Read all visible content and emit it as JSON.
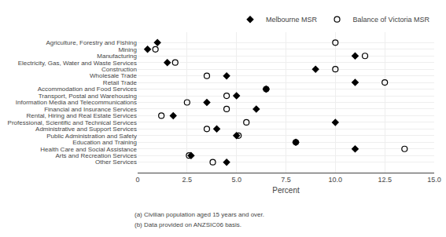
{
  "chart_data": {
    "type": "scatter",
    "orientation": "horizontal",
    "categories": [
      "Agriculture, Forestry and Fishing",
      "Mining",
      "Manufacturing",
      "Electricity, Gas, Water and Waste Services",
      "Construction",
      "Wholesale Trade",
      "Retail Trade",
      "Accommodation and Food Services",
      "Transport, Postal and Warehousing",
      "Information Media and Telecommunications",
      "Financial and Insurance Services",
      "Rental, Hiring and Real Estate Services",
      "Professional, Scientific and Technical Services",
      "Administrative and Support Services",
      "Public Administration and Safety",
      "Education and Training",
      "Health Care and Social Assistance",
      "Arts and Recreation Services",
      "Other Services"
    ],
    "series": [
      {
        "name": "Melbourne MSR",
        "color": "black",
        "marker": "diamond",
        "values": [
          1.0,
          0.5,
          11.0,
          1.5,
          9.0,
          4.5,
          11.0,
          6.5,
          5.0,
          3.5,
          6.0,
          1.8,
          10.0,
          4.0,
          5.0,
          8.0,
          11.0,
          2.7,
          4.5
        ]
      },
      {
        "name": "Balance of Victoria MSR",
        "color": "black",
        "marker": "circle-open",
        "values": [
          10.0,
          0.9,
          11.5,
          1.9,
          10.0,
          3.5,
          12.5,
          6.5,
          4.5,
          2.5,
          4.5,
          1.2,
          5.5,
          3.5,
          5.1,
          8.0,
          13.5,
          2.6,
          3.8
        ]
      }
    ],
    "xlabel": "Percent",
    "xlim": [
      0,
      15.0
    ],
    "xticks": [
      0,
      2.5,
      {
        "value": 5,
        "label": "5.0"
      },
      7.5,
      {
        "value": 10,
        "label": "10.0"
      },
      12.5,
      {
        "value": 15,
        "label": "15.0"
      }
    ],
    "grid": true,
    "legend": "top",
    "annotations": [
      "(a) Civilian population aged 15 years and over.",
      "(b) Data provided on ANZSIC06 basis."
    ]
  }
}
